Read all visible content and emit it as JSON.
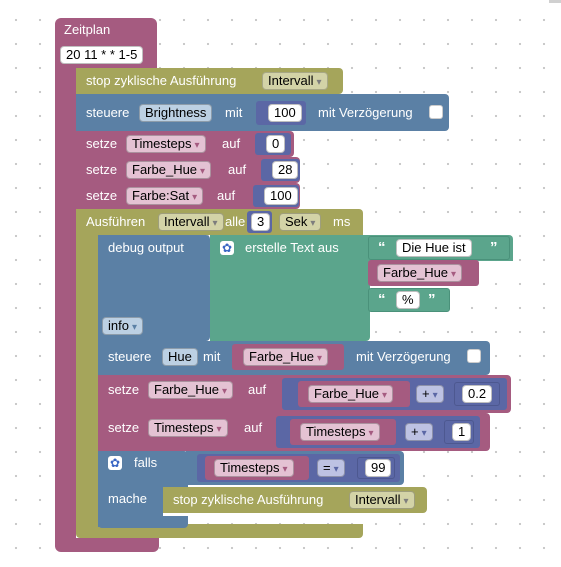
{
  "schedule": {
    "title": "Zeitplan",
    "cron": "20 11 * * 1-5"
  },
  "stop1": {
    "label": "stop zyklische Ausführung",
    "var": "Intervall"
  },
  "control": {
    "label": "steuere",
    "device": "Brightness",
    "with": "mit",
    "value": "100",
    "delay": "mit Verzögerung"
  },
  "set_timesteps": {
    "label": "setze",
    "var": "Timesteps",
    "to": "auf",
    "value": "0"
  },
  "set_hue": {
    "label": "setze",
    "var": "Farbe_Hue",
    "to": "auf",
    "value": "28"
  },
  "set_sat": {
    "label": "setze",
    "var": "Farbe:Sat",
    "to": "auf",
    "value": "100"
  },
  "interval": {
    "label": "Ausführen",
    "var": "Intervall",
    "every": "alle",
    "value": "3",
    "unit": "Sek",
    "unit2": "ms"
  },
  "debug": {
    "label": "debug output",
    "level": "info"
  },
  "text_join": {
    "label": "erstelle Text aus",
    "text1": "Die Hue ist",
    "var": "Farbe_Hue",
    "text2": "%"
  },
  "control2": {
    "label": "steuere",
    "device": "Hue",
    "with": "mit",
    "var": "Farbe_Hue",
    "delay": "mit Verzögerung"
  },
  "inc_hue": {
    "label": "setze",
    "var": "Farbe_Hue",
    "to": "auf",
    "operand": "Farbe_Hue",
    "op": "+",
    "value": "0.2"
  },
  "inc_ts": {
    "label": "setze",
    "var": "Timesteps",
    "to": "auf",
    "operand": "Timesteps",
    "op": "+",
    "value": "1"
  },
  "if_block": {
    "if": "falls",
    "var": "Timesteps",
    "op": "=",
    "value": "99",
    "do": "mache"
  },
  "stop2": {
    "label": "stop zyklische Ausführung",
    "var": "Intervall"
  },
  "colors": {
    "schedule": "#a55b80",
    "action": "#a5a55b",
    "control": "#5b80a5",
    "variable": "#a55b80",
    "math": "#5b67a5",
    "text": "#5ba58c"
  }
}
